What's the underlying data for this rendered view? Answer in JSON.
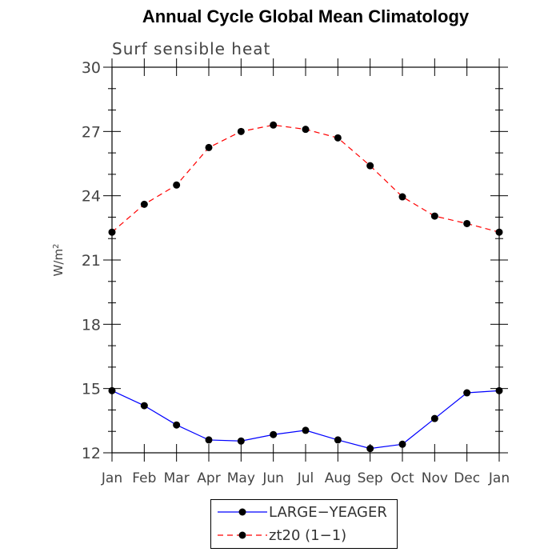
{
  "chart_data": {
    "type": "line",
    "title": "Annual Cycle Global Mean Climatology",
    "subtitle": "Surf sensible heat",
    "ylabel": "W/m²",
    "ylabel_base": "W/m",
    "ylabel_sup": "2",
    "ylim": [
      12,
      30
    ],
    "yticks": [
      12,
      15,
      18,
      21,
      24,
      27,
      30
    ],
    "categories": [
      "Jan",
      "Feb",
      "Mar",
      "Apr",
      "May",
      "Jun",
      "Jul",
      "Aug",
      "Sep",
      "Oct",
      "Nov",
      "Dec",
      "Jan"
    ],
    "grid": false,
    "legend_position": "bottom-center",
    "series": [
      {
        "name": "LARGE−YEAGER",
        "color": "#0000ff",
        "style": "solid",
        "values": [
          14.9,
          14.2,
          13.3,
          12.6,
          12.55,
          12.85,
          13.05,
          12.6,
          12.2,
          12.4,
          13.6,
          14.8,
          14.9
        ]
      },
      {
        "name": "zt20 (1−1)",
        "color": "#ff0000",
        "style": "dashed",
        "values": [
          22.3,
          23.6,
          24.5,
          26.25,
          27.0,
          27.3,
          27.1,
          26.7,
          25.4,
          23.95,
          23.05,
          22.7,
          22.3
        ]
      }
    ]
  }
}
